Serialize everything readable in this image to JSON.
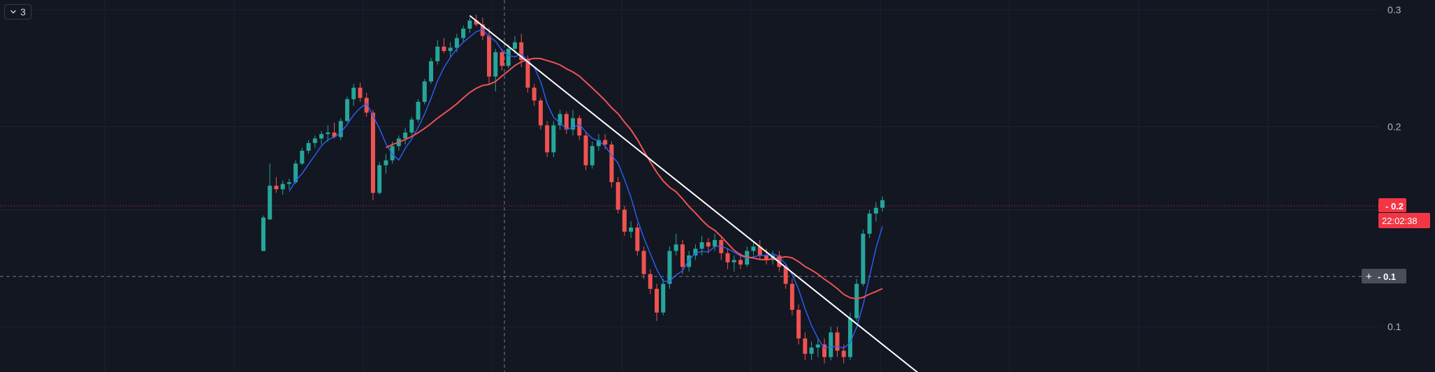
{
  "legend": {
    "count": "3"
  },
  "colors": {
    "background": "#131722",
    "up": "#26a69a",
    "down": "#ef5350",
    "ma_fast": "#2962ff",
    "ma_slow": "#ef5350",
    "trendline": "#ffffff",
    "grid": "#1e222d",
    "axis_text": "#b2b5be",
    "price_label_bg": "#f23645",
    "crosshair_label_bg": "#4a4e58"
  },
  "price_axis": {
    "ticks": [
      "0.3",
      "0.2",
      "0.1"
    ],
    "current_price_label": "0.2",
    "countdown": "22:02:38",
    "crosshair_label": "0.1",
    "crosshair_plus": "+"
  },
  "chart_data": {
    "type": "candlestick",
    "y_axis_tick_values": [
      0.3,
      0.2,
      0.1
    ],
    "ylim": [
      0.08,
      0.31
    ],
    "log_scale": true,
    "grid": true,
    "candles": [
      [
        0.13,
        0.147,
        0.13,
        0.146
      ],
      [
        0.145,
        0.176,
        0.145,
        0.163
      ],
      [
        0.163,
        0.168,
        0.159,
        0.161
      ],
      [
        0.161,
        0.166,
        0.158,
        0.164
      ],
      [
        0.164,
        0.167,
        0.161,
        0.165
      ],
      [
        0.165,
        0.178,
        0.164,
        0.176
      ],
      [
        0.176,
        0.186,
        0.175,
        0.184
      ],
      [
        0.184,
        0.191,
        0.182,
        0.189
      ],
      [
        0.189,
        0.194,
        0.186,
        0.192
      ],
      [
        0.192,
        0.197,
        0.188,
        0.195
      ],
      [
        0.195,
        0.201,
        0.19,
        0.196
      ],
      [
        0.196,
        0.203,
        0.192,
        0.193
      ],
      [
        0.193,
        0.206,
        0.191,
        0.204
      ],
      [
        0.204,
        0.222,
        0.203,
        0.22
      ],
      [
        0.22,
        0.232,
        0.215,
        0.229
      ],
      [
        0.229,
        0.233,
        0.218,
        0.221
      ],
      [
        0.221,
        0.225,
        0.207,
        0.21
      ],
      [
        0.21,
        0.212,
        0.155,
        0.159
      ],
      [
        0.159,
        0.177,
        0.158,
        0.175
      ],
      [
        0.175,
        0.182,
        0.17,
        0.178
      ],
      [
        0.178,
        0.19,
        0.176,
        0.187
      ],
      [
        0.187,
        0.194,
        0.184,
        0.192
      ],
      [
        0.192,
        0.199,
        0.188,
        0.196
      ],
      [
        0.196,
        0.207,
        0.194,
        0.205
      ],
      [
        0.205,
        0.22,
        0.203,
        0.218
      ],
      [
        0.218,
        0.236,
        0.216,
        0.234
      ],
      [
        0.234,
        0.254,
        0.232,
        0.251
      ],
      [
        0.251,
        0.27,
        0.248,
        0.264
      ],
      [
        0.264,
        0.272,
        0.258,
        0.26
      ],
      [
        0.26,
        0.268,
        0.254,
        0.263
      ],
      [
        0.263,
        0.276,
        0.259,
        0.272
      ],
      [
        0.272,
        0.284,
        0.268,
        0.281
      ],
      [
        0.281,
        0.292,
        0.277,
        0.289
      ],
      [
        0.289,
        0.295,
        0.283,
        0.285
      ],
      [
        0.285,
        0.292,
        0.27,
        0.274
      ],
      [
        0.274,
        0.282,
        0.232,
        0.238
      ],
      [
        0.238,
        0.262,
        0.226,
        0.259
      ],
      [
        0.259,
        0.262,
        0.243,
        0.247
      ],
      [
        0.247,
        0.266,
        0.245,
        0.262
      ],
      [
        0.262,
        0.274,
        0.258,
        0.268
      ],
      [
        0.268,
        0.276,
        0.246,
        0.252
      ],
      [
        0.252,
        0.256,
        0.225,
        0.229
      ],
      [
        0.229,
        0.232,
        0.215,
        0.219
      ],
      [
        0.219,
        0.221,
        0.198,
        0.201
      ],
      [
        0.201,
        0.204,
        0.18,
        0.183
      ],
      [
        0.183,
        0.204,
        0.18,
        0.201
      ],
      [
        0.201,
        0.212,
        0.198,
        0.209
      ],
      [
        0.209,
        0.211,
        0.195,
        0.198
      ],
      [
        0.198,
        0.212,
        0.194,
        0.206
      ],
      [
        0.206,
        0.208,
        0.191,
        0.194
      ],
      [
        0.194,
        0.196,
        0.172,
        0.175
      ],
      [
        0.175,
        0.19,
        0.173,
        0.187
      ],
      [
        0.187,
        0.195,
        0.184,
        0.191
      ],
      [
        0.191,
        0.195,
        0.185,
        0.188
      ],
      [
        0.188,
        0.19,
        0.162,
        0.165
      ],
      [
        0.165,
        0.168,
        0.148,
        0.15
      ],
      [
        0.15,
        0.152,
        0.137,
        0.139
      ],
      [
        0.139,
        0.144,
        0.136,
        0.141
      ],
      [
        0.141,
        0.143,
        0.128,
        0.13
      ],
      [
        0.13,
        0.132,
        0.118,
        0.12
      ],
      [
        0.12,
        0.122,
        0.112,
        0.114
      ],
      [
        0.114,
        0.116,
        0.102,
        0.105
      ],
      [
        0.105,
        0.118,
        0.104,
        0.116
      ],
      [
        0.116,
        0.132,
        0.114,
        0.13
      ],
      [
        0.13,
        0.138,
        0.128,
        0.133
      ],
      [
        0.133,
        0.135,
        0.12,
        0.123
      ],
      [
        0.123,
        0.13,
        0.121,
        0.128
      ],
      [
        0.128,
        0.133,
        0.126,
        0.131
      ],
      [
        0.131,
        0.137,
        0.128,
        0.134
      ],
      [
        0.134,
        0.136,
        0.129,
        0.132
      ],
      [
        0.132,
        0.138,
        0.13,
        0.135
      ],
      [
        0.135,
        0.137,
        0.126,
        0.129
      ],
      [
        0.129,
        0.131,
        0.122,
        0.125
      ],
      [
        0.125,
        0.128,
        0.121,
        0.126
      ],
      [
        0.126,
        0.129,
        0.122,
        0.124
      ],
      [
        0.124,
        0.132,
        0.123,
        0.13
      ],
      [
        0.13,
        0.134,
        0.128,
        0.132
      ],
      [
        0.132,
        0.135,
        0.126,
        0.128
      ],
      [
        0.128,
        0.131,
        0.124,
        0.126
      ],
      [
        0.126,
        0.13,
        0.124,
        0.128
      ],
      [
        0.128,
        0.13,
        0.121,
        0.123
      ],
      [
        0.123,
        0.124,
        0.114,
        0.116
      ],
      [
        0.116,
        0.118,
        0.104,
        0.106
      ],
      [
        0.106,
        0.108,
        0.094,
        0.096
      ],
      [
        0.096,
        0.098,
        0.089,
        0.091
      ],
      [
        0.091,
        0.095,
        0.089,
        0.093
      ],
      [
        0.093,
        0.096,
        0.09,
        0.094
      ],
      [
        0.094,
        0.096,
        0.088,
        0.09
      ],
      [
        0.09,
        0.1,
        0.089,
        0.098
      ],
      [
        0.098,
        0.1,
        0.09,
        0.092
      ],
      [
        0.092,
        0.094,
        0.088,
        0.09
      ],
      [
        0.09,
        0.105,
        0.089,
        0.103
      ],
      [
        0.103,
        0.118,
        0.102,
        0.116
      ],
      [
        0.116,
        0.14,
        0.115,
        0.138
      ],
      [
        0.138,
        0.15,
        0.136,
        0.148
      ],
      [
        0.148,
        0.154,
        0.144,
        0.151
      ],
      [
        0.151,
        0.157,
        0.149,
        0.155
      ]
    ],
    "moving_averages": [
      {
        "period": 5,
        "color": "#2962ff"
      },
      {
        "period": 20,
        "color": "#ef5350"
      }
    ],
    "trendline": {
      "from_candle": 32,
      "from_price": 0.294,
      "to_candle": 103,
      "to_price": 0.083
    },
    "current_price": 0.152,
    "crosshair_price": 0.119
  }
}
